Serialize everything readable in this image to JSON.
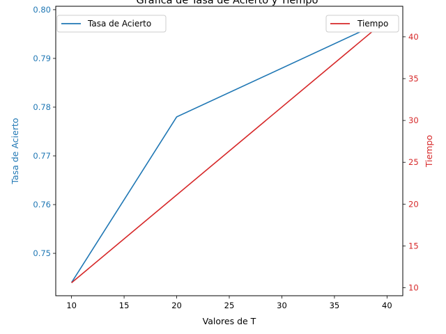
{
  "chart_data": {
    "type": "line",
    "title": "Gráfica de Tasa de Acierto y Tiempo",
    "xlabel": "Valores de T",
    "x": [
      10,
      20,
      40
    ],
    "xlim": [
      8.5,
      41.5
    ],
    "xticks": [
      10,
      15,
      20,
      25,
      30,
      35,
      40
    ],
    "grid": false,
    "y_left": {
      "label": "Tasa de Acierto",
      "color": "#1f77b4",
      "lim": [
        0.7413,
        0.8007
      ],
      "ticks": [
        "0.75",
        "0.76",
        "0.77",
        "0.78",
        "0.79",
        "0.80"
      ]
    },
    "y_right": {
      "label": "Tiempo",
      "color": "#d62728",
      "lim": [
        9.05,
        43.65
      ],
      "ticks": [
        "10",
        "15",
        "20",
        "25",
        "30",
        "35",
        "40"
      ]
    },
    "series": [
      {
        "name": "Tasa de Acierto",
        "axis": "left",
        "color": "#1f77b4",
        "values": [
          0.744,
          0.778,
          0.798
        ],
        "legend_position": "upper-left"
      },
      {
        "name": "Tiempo",
        "axis": "right",
        "color": "#d62728",
        "values": [
          10.6,
          21.1,
          42.1
        ],
        "legend_position": "upper-right"
      }
    ]
  }
}
